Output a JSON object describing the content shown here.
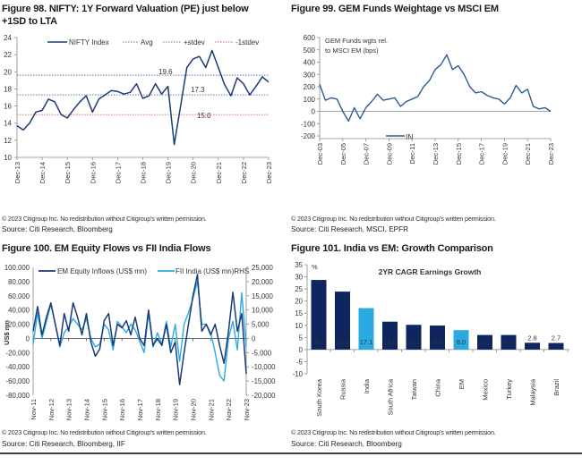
{
  "colors": {
    "navy": "#1c3a78",
    "dark_bar": "#0f2560",
    "light_blue": "#29abe2",
    "red_line": "#e05a5a",
    "dotted_blue": "#5a7bb0",
    "gem_line": "#2f5a94"
  },
  "figures": [
    {
      "title_line1": "Figure 98. NIFTY: 1Y Forward Valuation (PE) just below",
      "title_line2": "+1SD to LTA",
      "copyright": "© 2023 Citigroup Inc. No redistribution without Citigroup's written permission.",
      "source": "Source: Citi Research, Bloomberg"
    },
    {
      "title_line1": "Figure 99. GEM Funds Weightage vs MSCI EM",
      "copyright": "© 2023 Citigroup Inc. No redistribution without Citigroup's written permission.",
      "source": "Source: Citi Research, MSCI, EPFR"
    },
    {
      "title_line1": "Figure 100. EM Equity Flows vs FII India Flows",
      "copyright": "© 2023 Citigroup Inc. No redistribution without Citigroup's written permission.",
      "source": "Source: Citi Research, Bloomberg, IIF"
    },
    {
      "title_line1": "Figure 101. India vs EM: Growth Comparison",
      "copyright": "© 2023 Citigroup Inc. No redistribution without Citigroup's written permission.",
      "source": "Source: Citi Research, Bloomberg"
    }
  ],
  "chart_data": [
    {
      "type": "line",
      "ylim": [
        10,
        24
      ],
      "yticks": [
        10,
        12,
        14,
        16,
        18,
        20,
        22,
        24
      ],
      "xticks": [
        "Dec-13",
        "Dec-14",
        "Dec-15",
        "Dec-16",
        "Dec-17",
        "Dec-18",
        "Dec-19",
        "Dec-20",
        "Dec-21",
        "Dec-22",
        "Dec-23"
      ],
      "x_frequency": "quarterly, Dec-13 to Dec-23",
      "series": [
        {
          "name": "NIFTY Index",
          "values": [
            13.7,
            13.2,
            14.0,
            15.3,
            15.5,
            16.8,
            16.5,
            15.0,
            14.6,
            15.6,
            16.5,
            17.2,
            15.3,
            16.8,
            17.3,
            17.8,
            17.7,
            17.4,
            17.6,
            18.6,
            16.9,
            17.2,
            18.6,
            17.4,
            18.3,
            11.5,
            16.0,
            20.5,
            21.5,
            21.8,
            20.5,
            22.5,
            20.5,
            18.5,
            17.2,
            19.3,
            18.6,
            17.3,
            18.3,
            19.4,
            18.8
          ]
        }
      ],
      "reference_lines": [
        {
          "name": "Avg",
          "value": 17.3,
          "label": "17.3"
        },
        {
          "name": "+stdev",
          "value": 19.6,
          "label": "19.6"
        },
        {
          "name": "-1stdev",
          "value": 15.0,
          "label": "15.0"
        }
      ],
      "legend": "top",
      "grid": false
    },
    {
      "type": "line",
      "ylim": [
        -200,
        600
      ],
      "yticks": [
        -200,
        -100,
        0,
        100,
        200,
        300,
        400,
        500,
        600
      ],
      "xticks": [
        "Dec-03",
        "Dec-05",
        "Dec-07",
        "Dec-09",
        "Dec-11",
        "Dec-13",
        "Dec-15",
        "Dec-17",
        "Dec-19",
        "Dec-21",
        "Dec-23"
      ],
      "x_frequency": "semi-annual, Dec-03 to Dec-23",
      "annotation_line1": "GEM Funds wgts  rel.",
      "annotation_line2": "to MSCI EM (bps)",
      "series": [
        {
          "name": "IN",
          "values": [
            220,
            90,
            110,
            100,
            0,
            -80,
            30,
            -60,
            30,
            80,
            140,
            90,
            100,
            110,
            40,
            80,
            100,
            120,
            200,
            250,
            340,
            380,
            460,
            340,
            370,
            300,
            200,
            150,
            160,
            130,
            110,
            100,
            60,
            110,
            210,
            150,
            180,
            40,
            20,
            30,
            0
          ]
        }
      ],
      "legend": "bottom",
      "grid": false
    },
    {
      "type": "line",
      "ylabel": "US$ mn",
      "ylim": [
        -80000,
        100000
      ],
      "y2lim": [
        -20000,
        25000
      ],
      "yticks": [
        "-80,000",
        "-60,000",
        "-40,000",
        "-20,000",
        "0",
        "20,000",
        "40,000",
        "60,000",
        "80,000",
        "100,000"
      ],
      "y2ticks": [
        "-20,000",
        "-15,000",
        "-10,000",
        "-5,000",
        "0",
        "5,000",
        "10,000",
        "15,000",
        "20,000",
        "25,000"
      ],
      "xticks": [
        "Nov-11",
        "Nov-12",
        "Nov-13",
        "Nov-14",
        "Nov-15",
        "Nov-16",
        "Nov-17",
        "Nov-18",
        "Nov-19",
        "Nov-20",
        "Nov-21",
        "Nov-22",
        "Nov-23"
      ],
      "x_frequency": "quarterly, Nov-11 to Nov-23",
      "series": [
        {
          "name": "EM Equity Inflows (US$ mn)",
          "axis": "left",
          "values": [
            10000,
            45000,
            5000,
            30000,
            50000,
            20000,
            -10000,
            35000,
            10000,
            50000,
            30000,
            5000,
            35000,
            -5000,
            -25000,
            -15000,
            25000,
            35000,
            -10000,
            20000,
            15000,
            25000,
            5000,
            30000,
            0,
            -10000,
            40000,
            -10000,
            0,
            -10000,
            20000,
            -20000,
            -5000,
            -65000,
            -20000,
            20000,
            60000,
            90000,
            10000,
            20000,
            5000,
            20000,
            -10000,
            -35000,
            10000,
            65000,
            10000,
            35000,
            -50000
          ]
        },
        {
          "name": "FII India (US$ mn)RHS",
          "axis": "right",
          "values": [
            -2000,
            9000,
            0,
            6000,
            12000,
            5000,
            -3000,
            2000,
            4000,
            7000,
            5000,
            3000,
            7000,
            0,
            -3000,
            -2000,
            5000,
            3000,
            -4000,
            6000,
            4000,
            2000,
            5000,
            3000,
            -1000,
            -5000,
            9000,
            -3000,
            2000,
            -2000,
            6000,
            -3000,
            5000,
            -8000,
            5000,
            9000,
            14000,
            20000,
            5000,
            5000,
            2000,
            -5000,
            -13000,
            -15000,
            0,
            6000,
            -4000,
            16000,
            -3000
          ]
        }
      ],
      "legend": "top",
      "grid": false
    },
    {
      "type": "bar",
      "title": "2YR CAGR Earnings Growth",
      "ylabel": "%",
      "ylim": [
        -10,
        35
      ],
      "yticks": [
        -10,
        -5,
        0,
        5,
        10,
        15,
        20,
        25,
        30,
        35
      ],
      "categories": [
        "South Korea",
        "Russia",
        "India",
        "South Africa",
        "Taiwan",
        "China",
        "EM",
        "Mexico",
        "Turkey",
        "Malaysia",
        "Brazil"
      ],
      "values": [
        28.7,
        23.9,
        17.1,
        11.5,
        10.2,
        9.9,
        8.0,
        6.0,
        6.0,
        2.8,
        2.7
      ],
      "labels": [
        "28.7",
        "23.9",
        "17.1",
        "11.5",
        "10.2",
        "9.9",
        "8.0",
        "6.0",
        "6.0",
        "2.8",
        "2.7"
      ],
      "highlighted": [
        "India",
        "EM"
      ],
      "grid": false
    }
  ]
}
